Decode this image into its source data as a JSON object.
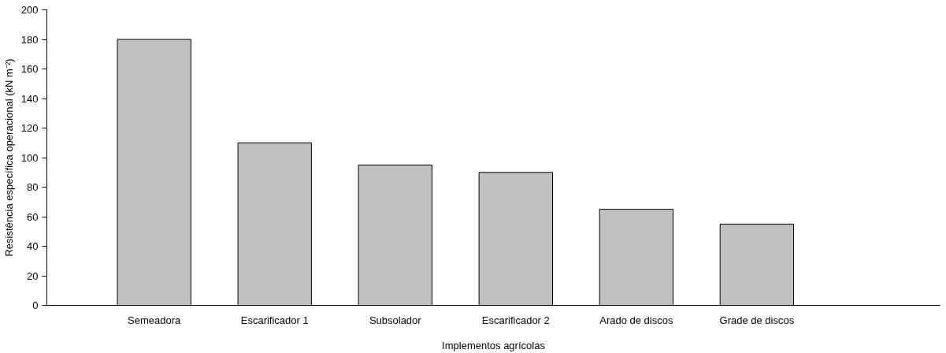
{
  "chart_data": {
    "type": "bar",
    "xlabel": "Implementos agrícolas",
    "ylabel": "Resistência específica operacional (kN m⁻²)",
    "categories": [
      "Semeadora",
      "Escarificador 1",
      "Subsolador",
      "Escarificador 2",
      "Arado de discos",
      "Grade de discos"
    ],
    "values": [
      180,
      110,
      95,
      90,
      65,
      55
    ],
    "color": "#c0c0c0",
    "ylim": [
      0,
      200
    ],
    "yticks": [
      0,
      20,
      40,
      60,
      80,
      100,
      120,
      140,
      160,
      180,
      200
    ],
    "grid": false
  }
}
